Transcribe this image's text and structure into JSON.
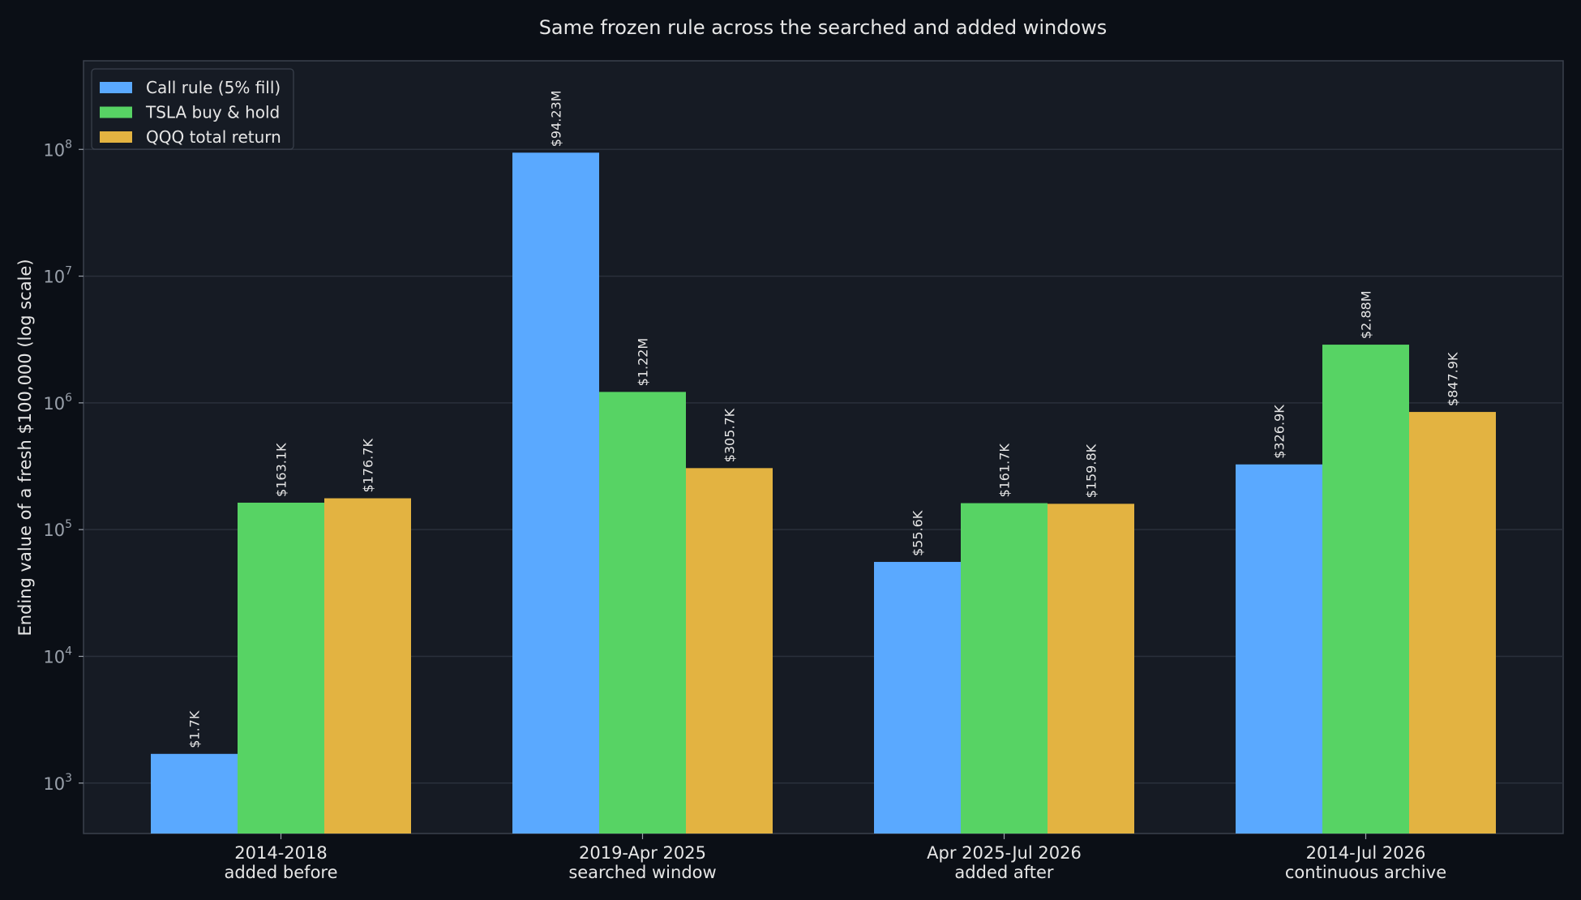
{
  "chart_data": {
    "type": "bar",
    "title": "Same frozen rule across the searched and added windows",
    "ylabel": "Ending value of a fresh $100,000 (log scale)",
    "xlabel": "",
    "yscale": "log",
    "ylim": [
      400,
      500000000
    ],
    "yticks": [
      {
        "base": "10",
        "exp": "3",
        "value": 1000
      },
      {
        "base": "10",
        "exp": "4",
        "value": 10000
      },
      {
        "base": "10",
        "exp": "5",
        "value": 100000
      },
      {
        "base": "10",
        "exp": "6",
        "value": 1000000
      },
      {
        "base": "10",
        "exp": "7",
        "value": 10000000
      },
      {
        "base": "10",
        "exp": "8",
        "value": 100000000
      }
    ],
    "categories": [
      {
        "line1": "2014-2018",
        "line2": "added before"
      },
      {
        "line1": "2019-Apr 2025",
        "line2": "searched window"
      },
      {
        "line1": "Apr 2025-Jul 2026",
        "line2": "added after"
      },
      {
        "line1": "2014-Jul 2026",
        "line2": "continuous archive"
      }
    ],
    "series": [
      {
        "name": "Call rule (5% fill)",
        "color": "#5aa9ff",
        "values": [
          1700,
          94230000,
          55600,
          326900
        ],
        "labels": [
          "$1.7K",
          "$94.23M",
          "$55.6K",
          "$326.9K"
        ]
      },
      {
        "name": "TSLA buy & hold",
        "color": "#57d364",
        "values": [
          163100,
          1220000,
          161700,
          2880000
        ],
        "labels": [
          "$163.1K",
          "$1.22M",
          "$161.7K",
          "$2.88M"
        ]
      },
      {
        "name": "QQQ total return",
        "color": "#e3b341",
        "values": [
          176700,
          305700,
          159800,
          847900
        ],
        "labels": [
          "$176.7K",
          "$305.7K",
          "$159.8K",
          "$847.9K"
        ]
      }
    ],
    "legend_position": "top-left",
    "grid": true
  },
  "colors": {
    "background": "#0b0f16",
    "plot_background": "#161b24",
    "grid": "#2a303b",
    "axis": "#3a414d"
  }
}
